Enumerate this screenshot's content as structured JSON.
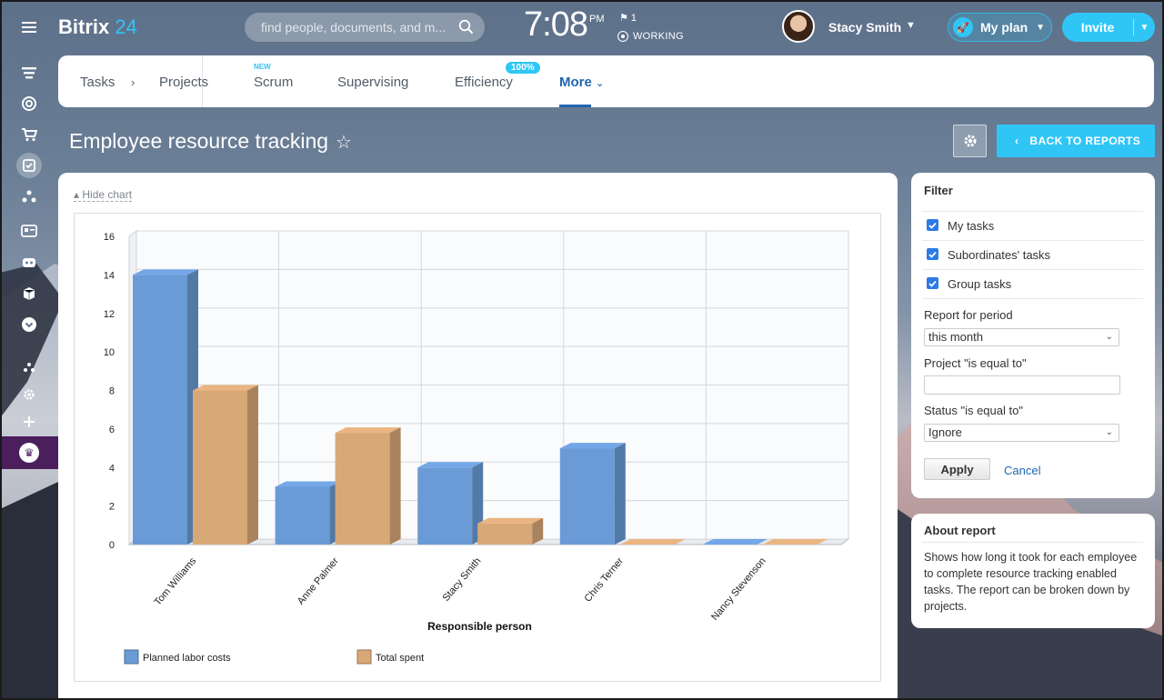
{
  "header": {
    "logo_main": "Bitrix",
    "logo_num": "24",
    "search_placeholder": "find people, documents, and m...",
    "clock": "7:08",
    "ampm": "PM",
    "flag_count": "1",
    "status": "WORKING",
    "user_name": "Stacy Smith",
    "myplan_label": "My plan",
    "invite_label": "Invite"
  },
  "tabs": {
    "items": [
      "Tasks",
      "Projects",
      "Scrum",
      "Supervising",
      "Efficiency",
      "More"
    ],
    "scrum_badge": "NEW",
    "efficiency_badge": "100%",
    "active": "More"
  },
  "page": {
    "title": "Employee resource tracking",
    "back_label": "BACK TO REPORTS",
    "hide_chart": "Hide chart"
  },
  "chart_data": {
    "type": "bar",
    "categories": [
      "Tom Williams",
      "Anne Palmer",
      "Stacy Smith",
      "Chris Terner",
      "Nancy Stevenson"
    ],
    "series": [
      {
        "name": "Planned labor costs",
        "values": [
          14,
          3,
          4,
          5,
          0
        ],
        "color": "#6b9bd6"
      },
      {
        "name": "Total spent",
        "values": [
          8,
          5.8,
          1.1,
          0,
          0
        ],
        "color": "#d9a877"
      }
    ],
    "xlabel": "Responsible person",
    "ylim": [
      0,
      16
    ],
    "yticks": [
      0,
      2,
      4,
      6,
      8,
      10,
      12,
      14,
      16
    ],
    "grid": true,
    "legend_position": "bottom-left"
  },
  "filter": {
    "title": "Filter",
    "checkboxes": [
      {
        "label": "My tasks",
        "checked": true
      },
      {
        "label": "Subordinates' tasks",
        "checked": true
      },
      {
        "label": "Group tasks",
        "checked": true
      }
    ],
    "period_label": "Report for period",
    "period_value": "this month",
    "project_label": "Project \"is equal to\"",
    "project_value": "",
    "status_label": "Status \"is equal to\"",
    "status_value": "Ignore",
    "apply_label": "Apply",
    "cancel_label": "Cancel"
  },
  "about": {
    "title": "About report",
    "text": "Shows how long it took for each employee to complete resource tracking enabled tasks. The report can be broken down by projects."
  },
  "colors": {
    "accent": "#2fc6f6",
    "link": "#2067b0",
    "crown_bg": "#4b1f5c"
  }
}
